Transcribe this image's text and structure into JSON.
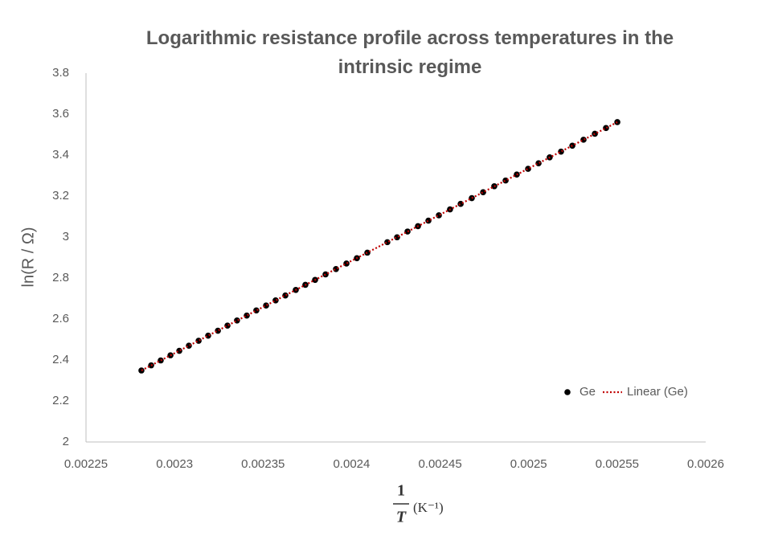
{
  "chart_data": {
    "type": "scatter",
    "title": "Logarithmic resistance profile across temperatures in the intrinsic regime",
    "ylabel": "ln(R / Ω)",
    "xlabel_numerator": "1",
    "xlabel_denominator": "T",
    "xlabel_unit": "(K⁻¹)",
    "xlim": [
      0.00225,
      0.0026
    ],
    "xticks": [
      0.00225,
      0.0023,
      0.00235,
      0.0024,
      0.00245,
      0.0025,
      0.00255,
      0.0026
    ],
    "ylim": [
      2,
      3.8
    ],
    "yticks": [
      2,
      2.2,
      2.4,
      2.6,
      2.8,
      3,
      3.2,
      3.4,
      3.6,
      3.8
    ],
    "grid": false,
    "legend": "right",
    "series": [
      {
        "name": "Ge",
        "color": "#000000",
        "x": [
          0.0022813,
          0.0022868,
          0.0022922,
          0.0022977,
          0.0023027,
          0.0023081,
          0.0023136,
          0.002319,
          0.0023245,
          0.0023299,
          0.0023353,
          0.0023408,
          0.0023462,
          0.0023517,
          0.0023571,
          0.0023626,
          0.0023685,
          0.0023739,
          0.0023794,
          0.0023853,
          0.0023912,
          0.0023971,
          0.002403,
          0.0024089,
          0.0024202,
          0.0024257,
          0.0024316,
          0.0024375,
          0.0024434,
          0.0024493,
          0.0024556,
          0.0024616,
          0.0024679,
          0.0024743,
          0.0024806,
          0.002487,
          0.0024933,
          0.0024997,
          0.0025056,
          0.0025119,
          0.0025183,
          0.0025247,
          0.002531,
          0.0025374,
          0.0025437,
          0.0025501
        ],
        "values": [
          2.349,
          2.374,
          2.398,
          2.423,
          2.445,
          2.47,
          2.494,
          2.519,
          2.543,
          2.568,
          2.593,
          2.617,
          2.642,
          2.666,
          2.691,
          2.715,
          2.742,
          2.767,
          2.791,
          2.818,
          2.844,
          2.871,
          2.897,
          2.924,
          2.975,
          2.999,
          3.027,
          3.053,
          3.08,
          3.106,
          3.135,
          3.162,
          3.19,
          3.219,
          3.248,
          3.276,
          3.305,
          3.333,
          3.36,
          3.389,
          3.417,
          3.446,
          3.475,
          3.504,
          3.532,
          3.561
        ]
      }
    ],
    "trendline": {
      "name": "Linear (Ge)",
      "color": "#c00000"
    }
  }
}
